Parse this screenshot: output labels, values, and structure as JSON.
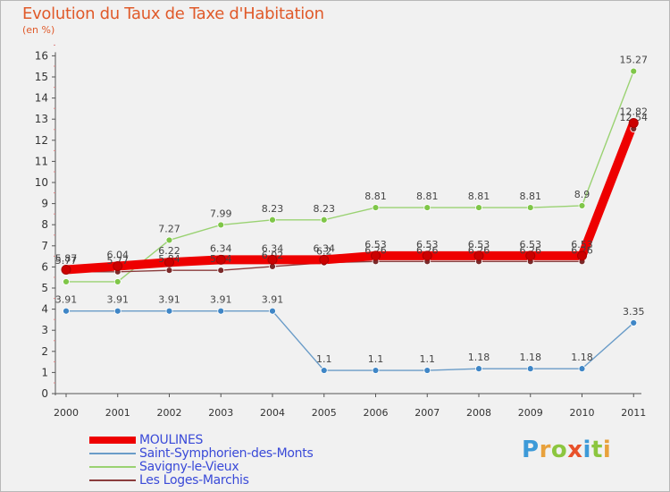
{
  "title": "Evolution du Taux de Taxe d'Habitation",
  "unit": "(en %)",
  "logo_text": "Proxiti",
  "chart_data": {
    "type": "line",
    "title": "Evolution du Taux de Taxe d'Habitation",
    "ylabel": "(en %)",
    "xlabel": "",
    "x": [
      "2000",
      "2001",
      "2002",
      "2003",
      "2004",
      "2005",
      "2006",
      "2007",
      "2008",
      "2009",
      "2010",
      "2011"
    ],
    "yticks": [
      "0",
      "1",
      "2",
      "3",
      "4",
      "5",
      "6",
      "7",
      "8",
      "9",
      "10",
      "11",
      "12",
      "13",
      "14",
      "15",
      "16"
    ],
    "ylim": [
      0,
      16
    ],
    "grid": false,
    "legend_position": "bottom-left",
    "series": [
      {
        "name": "Saint-Symphorien-des-Monts",
        "color": "#6a9cc8",
        "marker_color": "#3f86c6",
        "values": [
          3.91,
          3.91,
          3.91,
          3.91,
          3.91,
          1.1,
          1.1,
          1.1,
          1.18,
          1.18,
          1.18,
          3.35
        ],
        "labels": [
          "3.91",
          "3.91",
          "3.91",
          "3.91",
          "3.91",
          "1.1",
          "1.1",
          "1.1",
          "1.18",
          "1.18",
          "1.18",
          "3.35"
        ]
      },
      {
        "name": "Savigny-le-Vieux",
        "color": "#9ad272",
        "marker_color": "#7fc648",
        "values": [
          5.3,
          5.3,
          7.27,
          7.99,
          8.23,
          8.23,
          8.81,
          8.81,
          8.81,
          8.81,
          8.9,
          15.27
        ],
        "labels": [
          "",
          "",
          "7.27",
          "7.99",
          "8.23",
          "8.23",
          "8.81",
          "8.81",
          "8.81",
          "8.81",
          "8.9",
          "15.27"
        ]
      },
      {
        "name": "Les Loges-Marchis",
        "color": "#8a3c3c",
        "marker_color": "#7a2a2a",
        "values": [
          5.77,
          5.77,
          5.84,
          5.84,
          6.02,
          6.2,
          6.26,
          6.26,
          6.26,
          6.26,
          6.26,
          12.54
        ],
        "labels": [
          "5.77",
          "5.77",
          "5.84",
          "5.84",
          "6.02",
          "6.2",
          "6.26",
          "6.26",
          "6.26",
          "6.26",
          "6.26",
          "12.54"
        ]
      },
      {
        "name": "MOULINES",
        "color": "#ee0000",
        "marker_color": "#cc0000",
        "values": [
          5.87,
          6.04,
          6.22,
          6.34,
          6.34,
          6.34,
          6.53,
          6.53,
          6.53,
          6.53,
          6.53,
          12.82
        ],
        "labels": [
          "5.87",
          "6.04",
          "6.22",
          "6.34",
          "6.34",
          "6.34",
          "6.53",
          "6.53",
          "6.53",
          "6.53",
          "6.53",
          "12.82"
        ]
      }
    ]
  },
  "legend": [
    {
      "label": "MOULINES",
      "color": "#ee0000",
      "thick": true
    },
    {
      "label": "Saint-Symphorien-des-Monts",
      "color": "#6a9cc8",
      "thick": false
    },
    {
      "label": "Savigny-le-Vieux",
      "color": "#9ad272",
      "thick": false
    },
    {
      "label": "Les Loges-Marchis",
      "color": "#8a3c3c",
      "thick": false
    }
  ]
}
